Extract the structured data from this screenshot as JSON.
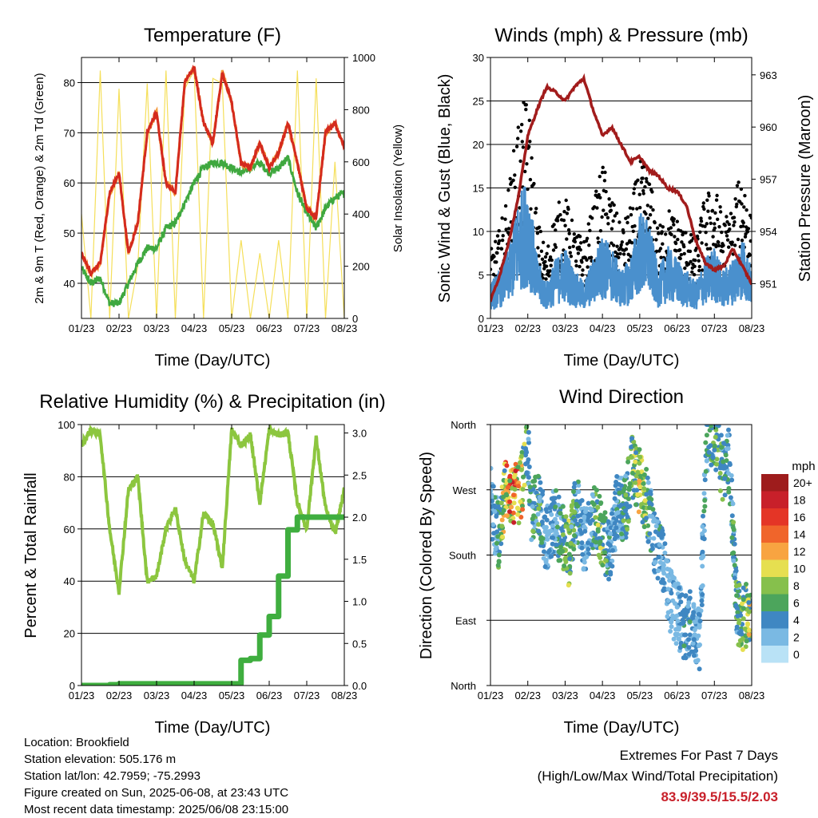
{
  "panels": {
    "temperature": {
      "title": "Temperature (F)",
      "xlabel": "Time (Day/UTC)",
      "ylabel_left": "2m & 9m T (Red, Orange) & 2m Td (Green)",
      "ylabel_right": "Solar Insolation (Yellow)",
      "y_ticks": [
        "40",
        "50",
        "60",
        "70",
        "80"
      ],
      "y2_ticks": [
        "0",
        "200",
        "400",
        "600",
        "800",
        "1000"
      ],
      "x_ticks": [
        "01/23",
        "02/23",
        "03/23",
        "04/23",
        "05/23",
        "06/23",
        "07/23",
        "08/23"
      ]
    },
    "winds": {
      "title": "Winds (mph) & Pressure (mb)",
      "xlabel": "Time (Day/UTC)",
      "ylabel_left": "Sonic Wind & Gust (Blue, Black)",
      "ylabel_right": "Station Pressure (Maroon)",
      "y_ticks": [
        "0",
        "5",
        "10",
        "15",
        "20",
        "25",
        "30"
      ],
      "y2_ticks": [
        "951",
        "954",
        "957",
        "960",
        "963"
      ],
      "x_ticks": [
        "01/23",
        "02/23",
        "03/23",
        "04/23",
        "05/23",
        "06/23",
        "07/23",
        "08/23"
      ]
    },
    "humidity": {
      "title": "Relative Humidity (%) & Precipitation (in)",
      "xlabel": "Time (Day/UTC)",
      "ylabel_left": "Percent & Total Rainfall",
      "y_ticks": [
        "0",
        "20",
        "40",
        "60",
        "80",
        "100"
      ],
      "y2_ticks": [
        "0.0",
        "0.5",
        "1.0",
        "1.5",
        "2.0",
        "2.5",
        "3.0"
      ],
      "x_ticks": [
        "01/23",
        "02/23",
        "03/23",
        "04/23",
        "05/23",
        "06/23",
        "07/23",
        "08/23"
      ]
    },
    "direction": {
      "title": "Wind Direction",
      "xlabel": "Time (Day/UTC)",
      "ylabel_left": "Direction (Colored By Speed)",
      "y_ticks": [
        "North",
        "East",
        "South",
        "West",
        "North"
      ],
      "x_ticks": [
        "01/23",
        "02/23",
        "03/23",
        "04/23",
        "05/23",
        "06/23",
        "07/23",
        "08/23"
      ],
      "legend_title": "mph",
      "legend_labels": [
        "20+",
        "18",
        "16",
        "14",
        "12",
        "10",
        "8",
        "6",
        "4",
        "2",
        "0"
      ],
      "legend_colors": [
        "#9e1c1c",
        "#c8202a",
        "#e43526",
        "#f0652b",
        "#f8a441",
        "#e6df50",
        "#86c04c",
        "#4ca55c",
        "#3f87c2",
        "#7ab9e3",
        "#b9e2f6"
      ]
    }
  },
  "info": {
    "location": "Location: Brookfield",
    "elevation": "Station elevation: 505.176 m",
    "latlon": "Station lat/lon: 42.7959; -75.2993",
    "created": "Figure created on Sun, 2025-06-08, at 23:43 UTC",
    "recent": "Most recent data timestamp: 2025/06/08 23:15:00"
  },
  "extremes": {
    "title": "Extremes For Past 7 Days",
    "subtitle": "(High/Low/Max Wind/Total Precipitation)",
    "values": "83.9/39.5/15.5/2.03"
  },
  "chart_data": [
    {
      "type": "line",
      "title": "Temperature (F)",
      "xlabel": "Time (Day/UTC)",
      "ylabel": "2m & 9m T (Red, Orange) & 2m Td (Green)",
      "y2label": "Solar Insolation (Yellow)",
      "ylim": [
        33,
        85
      ],
      "y2lim": [
        0,
        1000
      ],
      "x": [
        0,
        0.25,
        0.5,
        0.75,
        1.0,
        1.25,
        1.5,
        1.75,
        2.0,
        2.25,
        2.5,
        2.75,
        3.0,
        3.25,
        3.5,
        3.75,
        4.0,
        4.25,
        4.5,
        4.75,
        5.0,
        5.25,
        5.5,
        5.75,
        6.0,
        6.25,
        6.5,
        6.75,
        7.0
      ],
      "series": [
        {
          "name": "2m & 9m T",
          "color": "#d42a1e",
          "values": [
            46,
            42,
            44,
            58,
            62,
            46,
            52,
            70,
            74,
            60,
            58,
            80,
            83,
            72,
            68,
            82,
            76,
            64,
            63,
            68,
            63,
            66,
            72,
            64,
            55,
            53,
            70,
            72,
            67
          ]
        },
        {
          "name": "2m Td",
          "color": "#3fa83f",
          "values": [
            43,
            40,
            41,
            36,
            36,
            40,
            44,
            47,
            47,
            51,
            52,
            56,
            60,
            63,
            64,
            64,
            63,
            62,
            63,
            64,
            62,
            63,
            65,
            58,
            54,
            51,
            55,
            57,
            58
          ]
        },
        {
          "name": "Solar Insolation",
          "color": "#f5df5a",
          "axis": "right",
          "values": [
            400,
            0,
            950,
            0,
            880,
            0,
            200,
            900,
            0,
            950,
            0,
            880,
            950,
            0,
            920,
            900,
            0,
            300,
            0,
            250,
            0,
            300,
            0,
            950,
            0,
            920,
            0,
            600,
            0
          ]
        }
      ]
    },
    {
      "type": "line",
      "title": "Winds (mph) & Pressure (mb)",
      "xlabel": "Time (Day/UTC)",
      "ylabel": "Sonic Wind & Gust (Blue, Black)",
      "y2label": "Station Pressure (Maroon)",
      "ylim": [
        0,
        30
      ],
      "y2lim": [
        949,
        964
      ],
      "x": [
        0,
        0.25,
        0.5,
        0.75,
        1.0,
        1.25,
        1.5,
        1.75,
        2.0,
        2.25,
        2.5,
        2.75,
        3.0,
        3.25,
        3.5,
        3.75,
        4.0,
        4.25,
        4.5,
        4.75,
        5.0,
        5.25,
        5.5,
        5.75,
        6.0,
        6.25,
        6.5,
        6.75,
        7.0
      ],
      "series": [
        {
          "name": "Sonic Wind",
          "color": "#4a90cd",
          "values": [
            3,
            4,
            6,
            10,
            12,
            5,
            3,
            5,
            6,
            4,
            3,
            5,
            7,
            6,
            4,
            5,
            9,
            8,
            4,
            6,
            5,
            4,
            3,
            5,
            6,
            4,
            5,
            7,
            4
          ]
        },
        {
          "name": "Gust",
          "color": "#000000",
          "values": [
            6,
            8,
            12,
            18,
            20,
            9,
            6,
            10,
            11,
            8,
            7,
            10,
            14,
            11,
            8,
            10,
            14,
            13,
            8,
            10,
            9,
            8,
            7,
            11,
            12,
            9,
            10,
            14,
            9
          ]
        },
        {
          "name": "Station Pressure",
          "color": "#a21c1c",
          "axis": "right",
          "values": [
            950.0,
            951.5,
            953.5,
            956.0,
            959.5,
            961.0,
            962.3,
            962.0,
            961.5,
            962.3,
            962.8,
            961.0,
            959.5,
            960.0,
            959.0,
            958.0,
            958.3,
            957.5,
            957.2,
            956.5,
            956.3,
            955.5,
            953.5,
            952.2,
            951.8,
            952.0,
            953.0,
            952.0,
            951.0
          ]
        }
      ]
    },
    {
      "type": "line",
      "title": "Relative Humidity (%) & Precipitation (in)",
      "xlabel": "Time (Day/UTC)",
      "ylabel": "Percent & Total Rainfall",
      "ylim": [
        0,
        100
      ],
      "y2lim": [
        0,
        3.1
      ],
      "x": [
        0,
        0.25,
        0.5,
        0.75,
        1.0,
        1.25,
        1.5,
        1.75,
        2.0,
        2.25,
        2.5,
        2.75,
        3.0,
        3.25,
        3.5,
        3.75,
        4.0,
        4.25,
        4.5,
        4.75,
        5.0,
        5.25,
        5.5,
        5.75,
        6.0,
        6.25,
        6.5,
        6.75,
        7.0
      ],
      "series": [
        {
          "name": "Relative Humidity",
          "color": "#8cc63f",
          "values": [
            92,
            98,
            96,
            60,
            36,
            75,
            80,
            40,
            42,
            60,
            68,
            48,
            40,
            66,
            62,
            45,
            98,
            92,
            96,
            70,
            98,
            96,
            97,
            70,
            60,
            95,
            68,
            58,
            75
          ]
        },
        {
          "name": "Total Precipitation",
          "color": "#3fae3f",
          "axis": "right",
          "values": [
            0,
            0,
            0,
            0.01,
            0.02,
            0.02,
            0.02,
            0.02,
            0.02,
            0.02,
            0.02,
            0.02,
            0.02,
            0.02,
            0.02,
            0.02,
            0.02,
            0.3,
            0.32,
            0.6,
            0.82,
            1.3,
            1.85,
            2.0,
            2.0,
            2.0,
            2.0,
            2.0,
            2.0
          ]
        }
      ]
    },
    {
      "type": "scatter",
      "title": "Wind Direction",
      "xlabel": "Time (Day/UTC)",
      "ylabel": "Direction (Colored By Speed)",
      "ylim": [
        0,
        360
      ],
      "y_tick_labels": [
        "North",
        "East",
        "South",
        "West",
        "North"
      ],
      "legend": "right",
      "x": [
        0.0,
        0.1,
        0.25,
        0.4,
        0.6,
        0.8,
        1.0,
        1.1,
        1.3,
        1.5,
        1.7,
        1.9,
        2.1,
        2.3,
        2.5,
        2.8,
        3.0,
        3.2,
        3.4,
        3.6,
        3.8,
        4.0,
        4.2,
        4.4,
        4.6,
        4.8,
        5.0,
        5.2,
        5.4,
        5.6,
        5.8,
        6.0,
        6.2,
        6.4,
        6.6,
        6.8,
        7.0
      ],
      "series": [
        {
          "name": "Direction",
          "values": [
            260,
            230,
            200,
            270,
            265,
            270,
            330,
            240,
            250,
            200,
            230,
            210,
            180,
            250,
            200,
            230,
            210,
            180,
            250,
            240,
            300,
            280,
            250,
            200,
            180,
            120,
            100,
            80,
            90,
            60,
            340,
            350,
            300,
            310,
            100,
            90,
            110
          ]
        },
        {
          "name": "Speed",
          "values": [
            3,
            4,
            6,
            12,
            14,
            13,
            4,
            5,
            7,
            3,
            4,
            6,
            8,
            5,
            3,
            7,
            9,
            4,
            4,
            6,
            8,
            10,
            7,
            4,
            4,
            3,
            2,
            5,
            4,
            3,
            5,
            7,
            6,
            5,
            6,
            8,
            9
          ]
        }
      ]
    }
  ]
}
